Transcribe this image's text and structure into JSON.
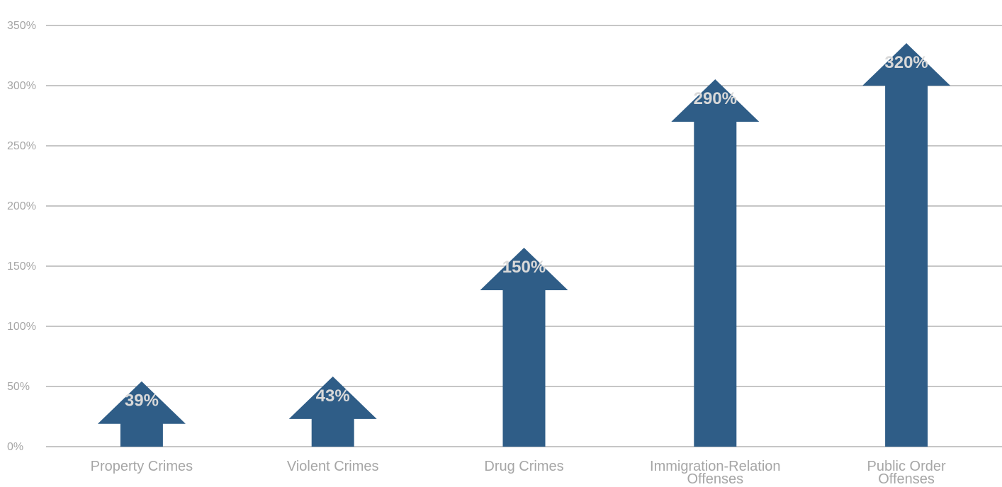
{
  "chart_data": {
    "type": "bar",
    "categories": [
      [
        "Property Crimes"
      ],
      [
        "Violent Crimes"
      ],
      [
        "Drug Crimes"
      ],
      [
        "Immigration-Relation",
        "Offenses"
      ],
      [
        "Public Order",
        "Offenses"
      ]
    ],
    "values": [
      39,
      43,
      150,
      290,
      320
    ],
    "data_labels": [
      "39%",
      "43%",
      "150%",
      "290%",
      "320%"
    ],
    "y_ticks": [
      0,
      50,
      100,
      150,
      200,
      250,
      300,
      350
    ],
    "y_tick_labels": [
      "0%",
      "50%",
      "100%",
      "150%",
      "200%",
      "250%",
      "300%",
      "350%"
    ],
    "ylim": [
      0,
      350
    ],
    "grid": true,
    "legend": "none",
    "mark_style": "upward-arrow",
    "colors": {
      "arrow": "#2f5d87",
      "grid": "#8c8c8c",
      "axis_text": "#a6a6a6",
      "data_label": "#d9d9d9"
    }
  }
}
